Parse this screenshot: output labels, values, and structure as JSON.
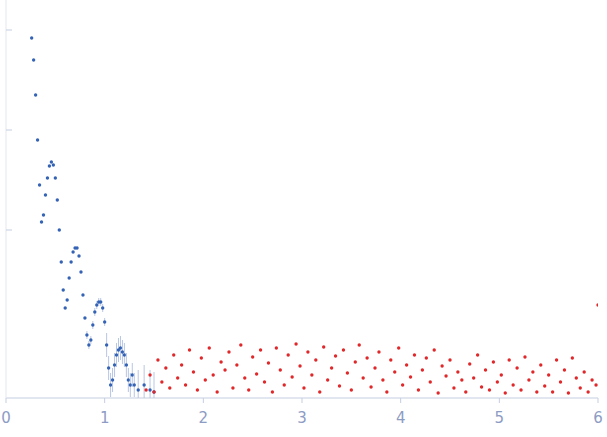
{
  "chart_data": {
    "type": "scatter",
    "xlim": [
      0,
      6
    ],
    "xticks": [
      0,
      1,
      2,
      3,
      4,
      5,
      6
    ],
    "ylim": [
      -0.68,
      3.3
    ],
    "yticks": [
      1,
      2,
      3
    ],
    "tick_labels": "x",
    "grid": false,
    "marker": "circle",
    "series": [
      {
        "color": "#3463b5",
        "x": [
          0.26,
          0.28,
          0.3,
          0.32,
          0.34,
          0.36,
          0.38,
          0.4,
          0.42,
          0.44,
          0.46,
          0.48,
          0.5,
          0.52,
          0.54,
          0.56,
          0.58,
          0.6,
          0.62,
          0.64,
          0.66,
          0.68,
          0.7,
          0.72,
          0.74,
          0.76,
          0.78,
          0.8,
          0.82,
          0.84,
          0.86,
          0.88,
          0.9,
          0.92,
          0.94,
          0.96,
          0.98,
          1.0,
          1.02,
          1.04,
          1.06,
          1.08,
          1.1,
          1.12,
          1.14,
          1.16,
          1.18,
          1.2,
          1.22,
          1.24,
          1.26,
          1.28,
          1.3,
          1.34,
          1.4,
          1.46,
          1.5
        ],
        "values": [
          2.92,
          2.7,
          2.35,
          1.9,
          1.45,
          1.08,
          1.15,
          1.35,
          1.52,
          1.64,
          1.68,
          1.65,
          1.52,
          1.3,
          1.0,
          0.68,
          0.4,
          0.22,
          0.3,
          0.52,
          0.68,
          0.78,
          0.82,
          0.82,
          0.74,
          0.58,
          0.35,
          0.12,
          -0.05,
          -0.15,
          -0.1,
          0.05,
          0.18,
          0.25,
          0.28,
          0.28,
          0.22,
          0.08,
          -0.15,
          -0.38,
          -0.55,
          -0.5,
          -0.35,
          -0.25,
          -0.2,
          -0.18,
          -0.22,
          -0.25,
          -0.35,
          -0.5,
          -0.55,
          -0.45,
          -0.55,
          -0.6,
          -0.55,
          -0.6,
          -0.62
        ],
        "errors": [
          0.01,
          0.01,
          0.01,
          0.01,
          0.01,
          0.01,
          0.01,
          0.01,
          0.01,
          0.01,
          0.01,
          0.01,
          0.01,
          0.01,
          0.01,
          0.01,
          0.01,
          0.01,
          0.01,
          0.01,
          0.01,
          0.01,
          0.01,
          0.01,
          0.01,
          0.01,
          0.01,
          0.01,
          0.04,
          0.04,
          0.04,
          0.04,
          0.04,
          0.04,
          0.04,
          0.04,
          0.04,
          0.04,
          0.12,
          0.12,
          0.12,
          0.12,
          0.12,
          0.12,
          0.12,
          0.12,
          0.12,
          0.12,
          0.12,
          0.12,
          0.12,
          0.12,
          0.12,
          0.2,
          0.2,
          0.2,
          0.2
        ]
      },
      {
        "color": "#e0282a",
        "x": [
          1.42,
          1.46,
          1.5,
          1.54,
          1.58,
          1.62,
          1.66,
          1.7,
          1.74,
          1.78,
          1.82,
          1.86,
          1.9,
          1.94,
          1.98,
          2.02,
          2.06,
          2.1,
          2.14,
          2.18,
          2.22,
          2.26,
          2.3,
          2.34,
          2.38,
          2.42,
          2.46,
          2.5,
          2.54,
          2.58,
          2.62,
          2.66,
          2.7,
          2.74,
          2.78,
          2.82,
          2.86,
          2.9,
          2.94,
          2.98,
          3.02,
          3.06,
          3.1,
          3.14,
          3.18,
          3.22,
          3.26,
          3.3,
          3.34,
          3.38,
          3.42,
          3.46,
          3.5,
          3.54,
          3.58,
          3.62,
          3.66,
          3.7,
          3.74,
          3.78,
          3.82,
          3.86,
          3.9,
          3.94,
          3.98,
          4.02,
          4.06,
          4.1,
          4.14,
          4.18,
          4.22,
          4.26,
          4.3,
          4.34,
          4.38,
          4.42,
          4.46,
          4.5,
          4.54,
          4.58,
          4.62,
          4.66,
          4.7,
          4.74,
          4.78,
          4.82,
          4.86,
          4.9,
          4.94,
          4.98,
          5.02,
          5.06,
          5.1,
          5.14,
          5.18,
          5.22,
          5.26,
          5.3,
          5.34,
          5.38,
          5.42,
          5.46,
          5.5,
          5.54,
          5.58,
          5.62,
          5.66,
          5.7,
          5.74,
          5.78,
          5.82,
          5.86,
          5.9,
          5.94,
          5.98,
          6.0
        ],
        "values": [
          -0.6,
          -0.45,
          -0.62,
          -0.3,
          -0.52,
          -0.38,
          -0.58,
          -0.25,
          -0.48,
          -0.35,
          -0.55,
          -0.2,
          -0.42,
          -0.6,
          -0.28,
          -0.5,
          -0.18,
          -0.45,
          -0.62,
          -0.32,
          -0.4,
          -0.22,
          -0.58,
          -0.35,
          -0.15,
          -0.48,
          -0.6,
          -0.27,
          -0.44,
          -0.2,
          -0.52,
          -0.33,
          -0.62,
          -0.18,
          -0.4,
          -0.55,
          -0.25,
          -0.47,
          -0.14,
          -0.36,
          -0.58,
          -0.22,
          -0.45,
          -0.3,
          -0.62,
          -0.17,
          -0.5,
          -0.38,
          -0.26,
          -0.56,
          -0.2,
          -0.43,
          -0.6,
          -0.32,
          -0.15,
          -0.48,
          -0.28,
          -0.57,
          -0.38,
          -0.22,
          -0.5,
          -0.62,
          -0.3,
          -0.42,
          -0.18,
          -0.55,
          -0.35,
          -0.47,
          -0.25,
          -0.6,
          -0.4,
          -0.28,
          -0.52,
          -0.2,
          -0.63,
          -0.36,
          -0.46,
          -0.3,
          -0.58,
          -0.42,
          -0.5,
          -0.62,
          -0.34,
          -0.48,
          -0.25,
          -0.57,
          -0.4,
          -0.6,
          -0.32,
          -0.52,
          -0.45,
          -0.63,
          -0.3,
          -0.55,
          -0.38,
          -0.6,
          -0.27,
          -0.5,
          -0.42,
          -0.62,
          -0.35,
          -0.56,
          -0.45,
          -0.62,
          -0.3,
          -0.52,
          -0.4,
          -0.63,
          -0.28,
          -0.48,
          -0.58,
          -0.42,
          -0.62,
          -0.5,
          -0.55,
          0.25
        ]
      }
    ]
  }
}
